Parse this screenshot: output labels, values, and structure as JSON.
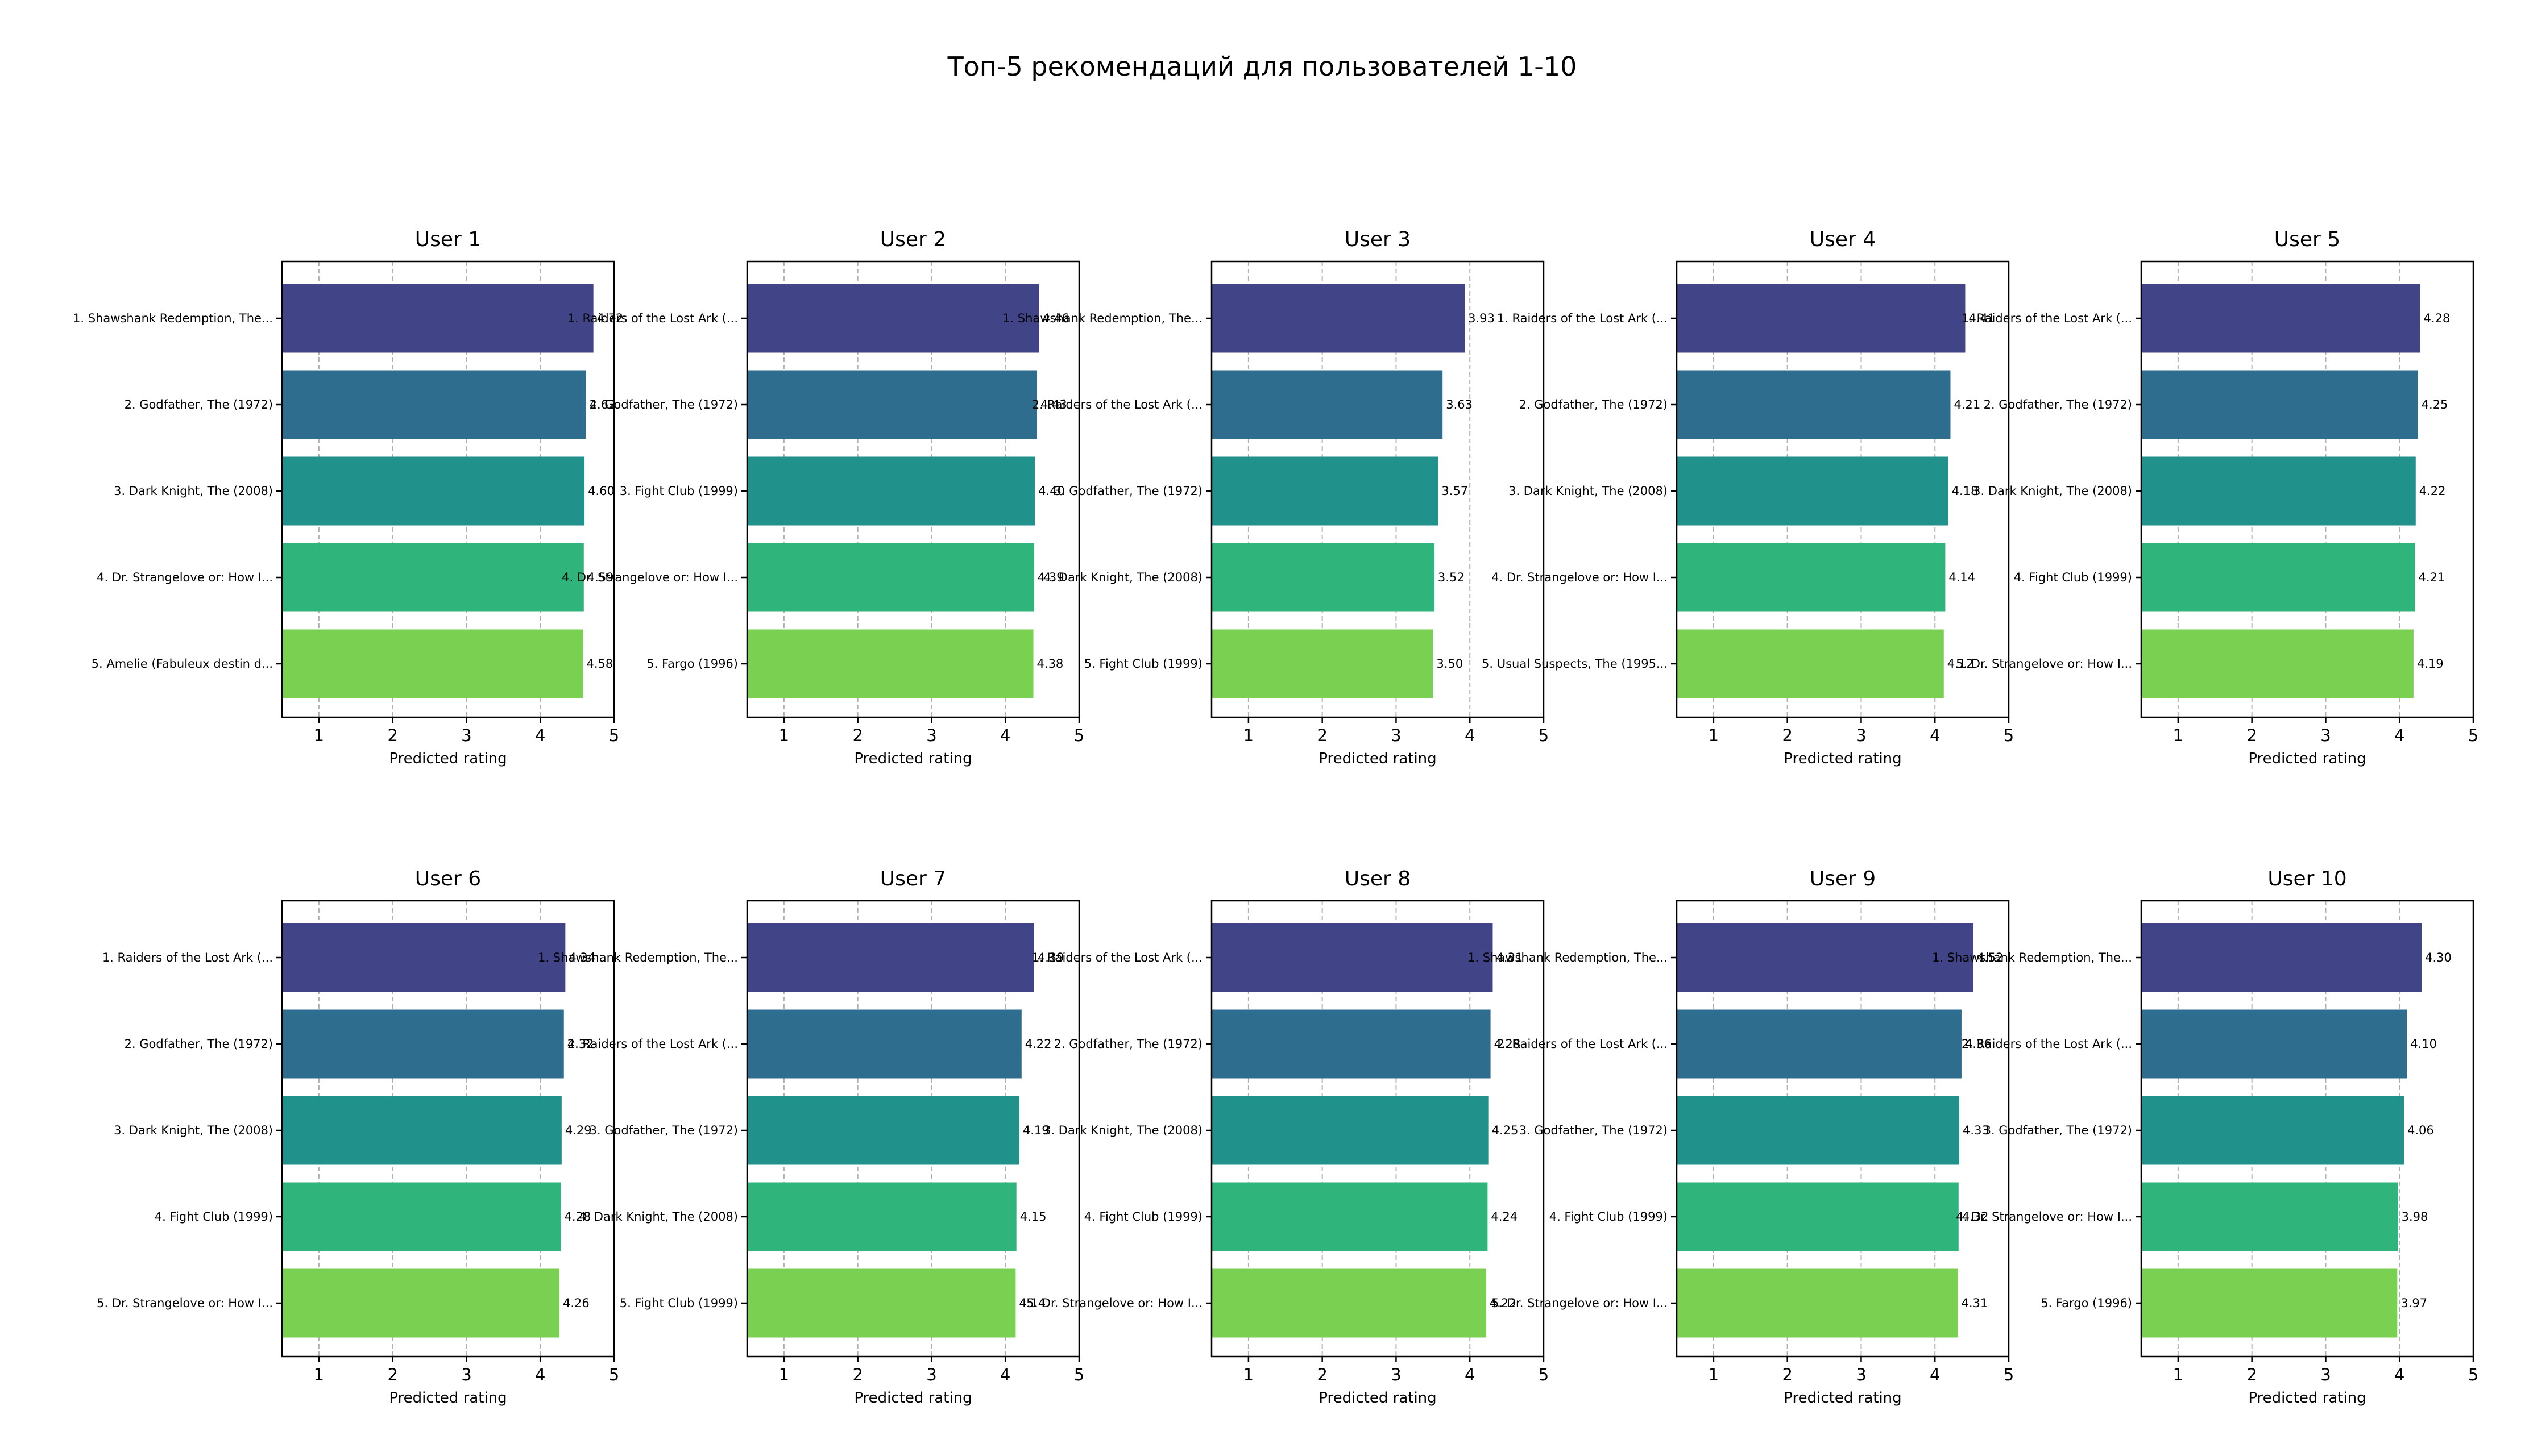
{
  "title": "Топ-5 рекомендаций для пользователей 1-10",
  "colors": [
    "#414487",
    "#2f6d8e",
    "#21918c",
    "#2fb47c",
    "#7ad151"
  ],
  "chart_data": [
    {
      "type": "bar",
      "orientation": "horizontal",
      "title": "User 1",
      "xlabel": "Predicted rating",
      "xlim": [
        0.5,
        5
      ],
      "xticks": [
        "1",
        "2",
        "3",
        "4",
        "5"
      ],
      "grid": "x",
      "categories": [
        "1. Shawshank Redemption, The...",
        "2. Godfather, The (1972)",
        "3. Dark Knight, The (2008)",
        "4. Dr. Strangelove or: How I...",
        "5. Amelie (Fabuleux destin d..."
      ],
      "values": [
        4.72,
        4.62,
        4.6,
        4.59,
        4.58
      ],
      "labels": [
        "4.72",
        "4.62",
        "4.60",
        "4.59",
        "4.58"
      ]
    },
    {
      "type": "bar",
      "orientation": "horizontal",
      "title": "User 2",
      "xlabel": "Predicted rating",
      "xlim": [
        0.5,
        5
      ],
      "xticks": [
        "1",
        "2",
        "3",
        "4",
        "5"
      ],
      "grid": "x",
      "categories": [
        "1. Raiders of the Lost Ark (...",
        "2. Godfather, The (1972)",
        "3. Fight Club (1999)",
        "4. Dr. Strangelove or: How I...",
        "5. Fargo (1996)"
      ],
      "values": [
        4.46,
        4.43,
        4.4,
        4.39,
        4.38
      ],
      "labels": [
        "4.46",
        "4.43",
        "4.40",
        "4.39",
        "4.38"
      ]
    },
    {
      "type": "bar",
      "orientation": "horizontal",
      "title": "User 3",
      "xlabel": "Predicted rating",
      "xlim": [
        0.5,
        5
      ],
      "xticks": [
        "1",
        "2",
        "3",
        "4",
        "5"
      ],
      "grid": "x",
      "categories": [
        "1. Shawshank Redemption, The...",
        "2. Raiders of the Lost Ark (...",
        "3. Godfather, The (1972)",
        "4. Dark Knight, The (2008)",
        "5. Fight Club (1999)"
      ],
      "values": [
        3.93,
        3.63,
        3.57,
        3.52,
        3.5
      ],
      "labels": [
        "3.93",
        "3.63",
        "3.57",
        "3.52",
        "3.50"
      ]
    },
    {
      "type": "bar",
      "orientation": "horizontal",
      "title": "User 4",
      "xlabel": "Predicted rating",
      "xlim": [
        0.5,
        5
      ],
      "xticks": [
        "1",
        "2",
        "3",
        "4",
        "5"
      ],
      "grid": "x",
      "categories": [
        "1. Raiders of the Lost Ark (...",
        "2. Godfather, The (1972)",
        "3. Dark Knight, The (2008)",
        "4. Dr. Strangelove or: How I...",
        "5. Usual Suspects, The (1995..."
      ],
      "values": [
        4.41,
        4.21,
        4.18,
        4.14,
        4.12
      ],
      "labels": [
        "4.41",
        "4.21",
        "4.18",
        "4.14",
        "4.12"
      ]
    },
    {
      "type": "bar",
      "orientation": "horizontal",
      "title": "User 5",
      "xlabel": "Predicted rating",
      "xlim": [
        0.5,
        5
      ],
      "xticks": [
        "1",
        "2",
        "3",
        "4",
        "5"
      ],
      "grid": "x",
      "categories": [
        "1. Raiders of the Lost Ark (...",
        "2. Godfather, The (1972)",
        "3. Dark Knight, The (2008)",
        "4. Fight Club (1999)",
        "5. Dr. Strangelove or: How I..."
      ],
      "values": [
        4.28,
        4.25,
        4.22,
        4.21,
        4.19
      ],
      "labels": [
        "4.28",
        "4.25",
        "4.22",
        "4.21",
        "4.19"
      ]
    },
    {
      "type": "bar",
      "orientation": "horizontal",
      "title": "User 6",
      "xlabel": "Predicted rating",
      "xlim": [
        0.5,
        5
      ],
      "xticks": [
        "1",
        "2",
        "3",
        "4",
        "5"
      ],
      "grid": "x",
      "categories": [
        "1. Raiders of the Lost Ark (...",
        "2. Godfather, The (1972)",
        "3. Dark Knight, The (2008)",
        "4. Fight Club (1999)",
        "5. Dr. Strangelove or: How I..."
      ],
      "values": [
        4.34,
        4.32,
        4.29,
        4.28,
        4.26
      ],
      "labels": [
        "4.34",
        "4.32",
        "4.29",
        "4.28",
        "4.26"
      ]
    },
    {
      "type": "bar",
      "orientation": "horizontal",
      "title": "User 7",
      "xlabel": "Predicted rating",
      "xlim": [
        0.5,
        5
      ],
      "xticks": [
        "1",
        "2",
        "3",
        "4",
        "5"
      ],
      "grid": "x",
      "categories": [
        "1. Shawshank Redemption, The...",
        "2. Raiders of the Lost Ark (...",
        "3. Godfather, The (1972)",
        "4. Dark Knight, The (2008)",
        "5. Fight Club (1999)"
      ],
      "values": [
        4.39,
        4.22,
        4.19,
        4.15,
        4.14
      ],
      "labels": [
        "4.39",
        "4.22",
        "4.19",
        "4.15",
        "4.14"
      ]
    },
    {
      "type": "bar",
      "orientation": "horizontal",
      "title": "User 8",
      "xlabel": "Predicted rating",
      "xlim": [
        0.5,
        5
      ],
      "xticks": [
        "1",
        "2",
        "3",
        "4",
        "5"
      ],
      "grid": "x",
      "categories": [
        "1. Raiders of the Lost Ark (...",
        "2. Godfather, The (1972)",
        "3. Dark Knight, The (2008)",
        "4. Fight Club (1999)",
        "5. Dr. Strangelove or: How I..."
      ],
      "values": [
        4.31,
        4.28,
        4.25,
        4.24,
        4.22
      ],
      "labels": [
        "4.31",
        "4.28",
        "4.25",
        "4.24",
        "4.22"
      ]
    },
    {
      "type": "bar",
      "orientation": "horizontal",
      "title": "User 9",
      "xlabel": "Predicted rating",
      "xlim": [
        0.5,
        5
      ],
      "xticks": [
        "1",
        "2",
        "3",
        "4",
        "5"
      ],
      "grid": "x",
      "categories": [
        "1. Shawshank Redemption, The...",
        "2. Raiders of the Lost Ark (...",
        "3. Godfather, The (1972)",
        "4. Fight Club (1999)",
        "5. Dr. Strangelove or: How I..."
      ],
      "values": [
        4.52,
        4.36,
        4.33,
        4.32,
        4.31
      ],
      "labels": [
        "4.52",
        "4.36",
        "4.33",
        "4.32",
        "4.31"
      ]
    },
    {
      "type": "bar",
      "orientation": "horizontal",
      "title": "User 10",
      "xlabel": "Predicted rating",
      "xlim": [
        0.5,
        5
      ],
      "xticks": [
        "1",
        "2",
        "3",
        "4",
        "5"
      ],
      "grid": "x",
      "categories": [
        "1. Shawshank Redemption, The...",
        "2. Raiders of the Lost Ark (...",
        "3. Godfather, The (1972)",
        "4. Dr. Strangelove or: How I...",
        "5. Fargo (1996)"
      ],
      "values": [
        4.3,
        4.1,
        4.06,
        3.98,
        3.97
      ],
      "labels": [
        "4.30",
        "4.10",
        "4.06",
        "3.98",
        "3.97"
      ]
    }
  ]
}
